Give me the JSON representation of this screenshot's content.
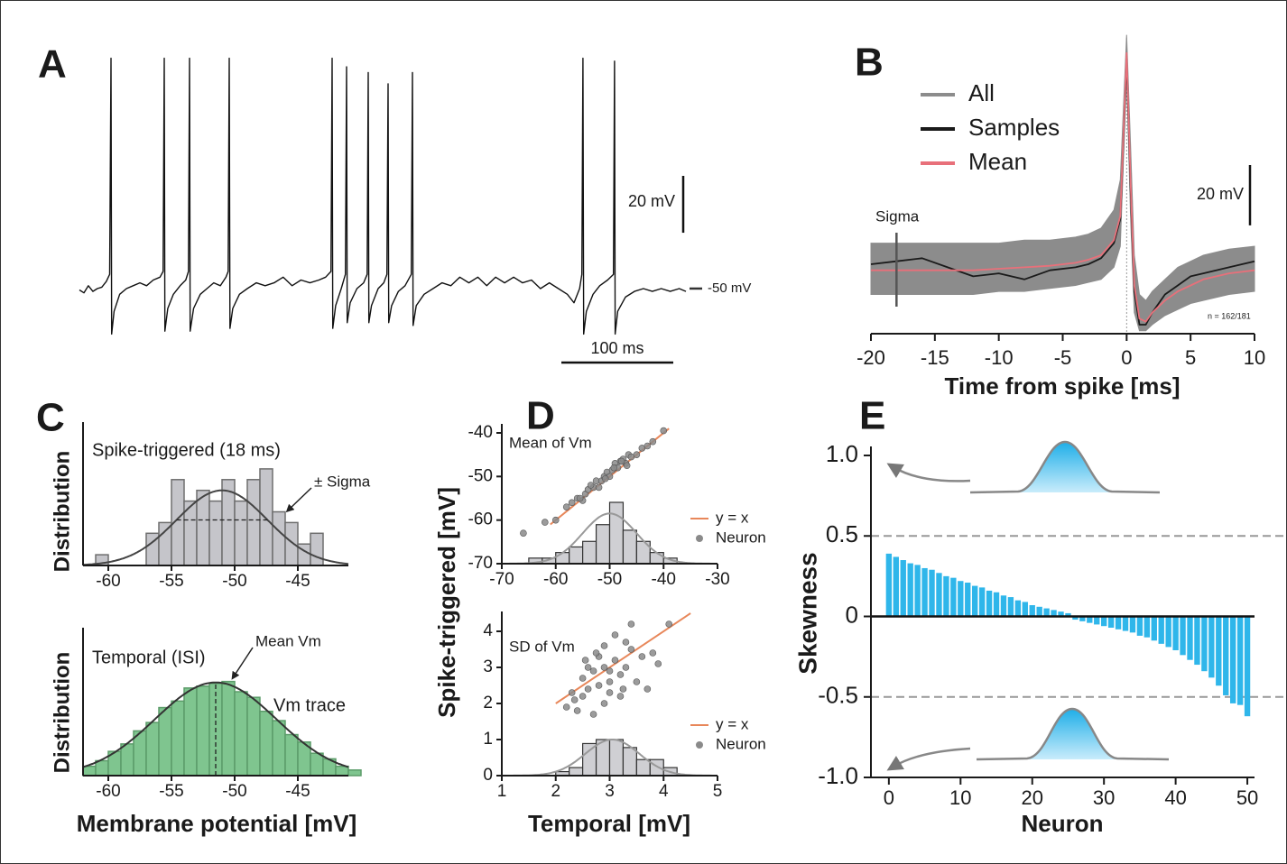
{
  "chart_data": [
    {
      "type": "line",
      "panel": "A",
      "color": "#111111",
      "x": [
        0,
        4,
        8,
        12,
        16,
        20,
        24,
        27,
        28.2,
        28.8,
        31,
        36,
        42,
        48,
        54,
        60,
        66,
        72,
        74.8,
        75.8,
        76.4,
        79,
        84,
        90,
        95,
        97.4,
        98.4,
        99,
        102,
        108,
        114,
        120,
        126,
        131,
        132.9,
        133.9,
        134.5,
        137,
        143,
        150,
        158,
        166,
        174,
        182,
        190,
        198,
        206,
        214,
        220,
        224.8,
        225.8,
        226.4,
        229,
        234,
        237.7,
        238.7,
        239.3,
        242,
        248,
        254,
        257.1,
        258.1,
        258.7,
        261,
        267,
        272,
        274.8,
        275.8,
        276.4,
        279,
        285,
        291,
        296.6,
        297.6,
        298.2,
        301,
        308,
        316,
        324,
        332,
        340,
        348,
        356,
        364,
        372,
        380,
        388,
        396,
        404,
        412,
        420,
        428,
        436,
        442,
        447,
        449,
        450,
        450.6,
        453,
        459,
        465,
        472,
        477.2,
        478.2,
        478.8,
        481,
        488,
        496,
        504,
        512,
        520,
        528,
        536,
        542
      ],
      "values": [
        -50.5,
        -51.5,
        -49,
        -51,
        -50,
        -49.5,
        -47.5,
        -45,
        31,
        -66,
        -58,
        -52,
        -50,
        -49,
        -48,
        -49,
        -47,
        -46,
        -44,
        31,
        -65,
        -57,
        -52,
        -49,
        -47,
        -44,
        31,
        -65,
        -57,
        -52,
        -50,
        -48,
        -49,
        -46,
        -44,
        31,
        -64,
        -57,
        -52,
        -50,
        -48,
        -49,
        -48,
        -46,
        -49,
        -47,
        -48,
        -47,
        -46,
        -44,
        31,
        -64,
        -56,
        -50,
        -45,
        28,
        -62,
        -55,
        -50,
        -48,
        -45,
        26,
        -62,
        -56,
        -50,
        -48,
        -45,
        22,
        -62,
        -56,
        -51,
        -49,
        -45,
        26,
        -63,
        -56,
        -52,
        -50,
        -48,
        -49,
        -46,
        -48,
        -46,
        -49,
        -46,
        -48,
        -46,
        -48,
        -47,
        -50,
        -48,
        -50,
        -52,
        -55,
        -50,
        -45,
        31,
        -66,
        -58,
        -52,
        -49,
        -47,
        -45,
        30,
        -66,
        -58,
        -53,
        -51,
        -50,
        -51,
        -50,
        -51,
        -50,
        -51
      ],
      "xlim": [
        0,
        542
      ],
      "ylim": [
        -70,
        35
      ],
      "scale_bars": [
        {
          "axis": "y",
          "value": 20,
          "label": "20 mV"
        },
        {
          "axis": "x",
          "value": 100,
          "label": "100 ms"
        }
      ],
      "ref_level": {
        "value": -50,
        "label": "-50 mV"
      }
    },
    {
      "type": "line",
      "panel": "B",
      "xlabel": "Time from spike [ms]",
      "x": [
        -20,
        -18,
        -16,
        -14,
        -12,
        -10,
        -8,
        -6,
        -4,
        -3,
        -2,
        -1,
        -0.5,
        0,
        0.3,
        0.6,
        1,
        1.5,
        2,
        3,
        4,
        5,
        6,
        8,
        10
      ],
      "series": [
        {
          "name": "All",
          "color": "#8c8c8c",
          "lower": [
            -58,
            -58,
            -58,
            -58,
            -58,
            -57,
            -57,
            -56,
            -55,
            -54,
            -53,
            -49,
            -42,
            15,
            -32,
            -64,
            -70,
            -70,
            -68,
            -65,
            -63,
            -61,
            -60,
            -58,
            -57
          ],
          "upper": [
            -41,
            -41,
            -41,
            -41,
            -41,
            -41,
            -40,
            -40,
            -39,
            -38,
            -36,
            -30,
            -20,
            28,
            -8,
            -45,
            -58,
            -60,
            -57,
            -53,
            -49,
            -47,
            -45,
            -43,
            -42
          ]
        },
        {
          "name": "Samples",
          "color": "#1a1a1a",
          "values": [
            -48,
            -47,
            -46,
            -49,
            -52,
            -51,
            -53,
            -50,
            -49,
            -48,
            -46,
            -41,
            -33,
            20,
            -22,
            -57,
            -68,
            -68,
            -64,
            -58,
            -55,
            -52,
            -51,
            -49,
            -47
          ]
        },
        {
          "name": "Mean",
          "color": "#e8707a",
          "values": [
            -50,
            -50,
            -50,
            -50,
            -50,
            -49.5,
            -49,
            -48.5,
            -47.5,
            -46.5,
            -45,
            -40,
            -32,
            22,
            -20,
            -55,
            -66,
            -67,
            -64,
            -60,
            -57,
            -55,
            -53,
            -51,
            -50
          ]
        }
      ],
      "xlim": [
        -20,
        10
      ],
      "ylim": [
        -71,
        30
      ],
      "xticks": [
        -20,
        -15,
        -10,
        -5,
        0,
        5,
        10
      ],
      "vline": 0,
      "sigma": {
        "x": -18,
        "label": "Sigma"
      },
      "note": "n = 162/181",
      "scale_bars": [
        {
          "axis": "y",
          "value": 20,
          "label": "20 mV"
        }
      ]
    },
    {
      "type": "histogram",
      "panel": "C",
      "title": "Spike-triggered (18 ms)",
      "ylabel": "Distribution",
      "annotations": [
        "± Sigma"
      ],
      "color": "#c5c5ca",
      "edge_color": "#6e6e6e",
      "fit_color": "#444444",
      "bins": [
        -61,
        -60,
        -59,
        -58,
        -57,
        -56,
        -55,
        -54,
        -53,
        -52,
        -51,
        -50,
        -49,
        -48,
        -47,
        -46,
        -45,
        -44,
        -43
      ],
      "counts": [
        1,
        0,
        0,
        0,
        3,
        4,
        8,
        6,
        7,
        6,
        8,
        6,
        8,
        9,
        5,
        4,
        2,
        3
      ],
      "fit": {
        "mean": -51,
        "sd": 3.6,
        "peak": 7
      },
      "sigma_line": true,
      "xlim": [
        -62,
        -41
      ],
      "ylim": [
        0,
        10
      ],
      "xticks": [
        -60,
        -55,
        -50,
        -45
      ]
    },
    {
      "type": "histogram",
      "title": "Temporal (ISI)",
      "ylabel": "Distribution",
      "xlabel": "Membrane potential [mV]",
      "annotations": [
        "Mean Vm",
        "Vm trace"
      ],
      "color": "#7fc58f",
      "edge_color": "#5b9b69",
      "fit_color": "#333333",
      "bins": [
        -62,
        -61,
        -60,
        -59,
        -58,
        -57,
        -56,
        -55,
        -54,
        -53,
        -52,
        -51,
        -50,
        -49,
        -48,
        -47,
        -46,
        -45,
        -44,
        -43,
        -42,
        -41,
        -40
      ],
      "counts": [
        1.0,
        1.6,
        2.6,
        3.4,
        4.8,
        5.7,
        7.3,
        8.0,
        9.4,
        9.6,
        9.9,
        10.1,
        9.0,
        8.4,
        6.9,
        5.9,
        4.4,
        3.6,
        2.4,
        1.8,
        1.0,
        0.6
      ],
      "fit": {
        "mean": -51.5,
        "sd": 4.8,
        "peak": 10
      },
      "mean_line": true,
      "xlim": [
        -62,
        -41
      ],
      "ylim": [
        0,
        12
      ],
      "xticks": [
        -60,
        -55,
        -50,
        -45
      ]
    },
    {
      "type": "scatter",
      "panel": "D",
      "ylabel": "Spike-triggered [mV]",
      "annotations": [
        "Mean of Vm"
      ],
      "series": [
        {
          "name": "y = x",
          "type": "line",
          "color": "#e8875a",
          "x": [
            -61,
            -39
          ],
          "values": [
            -61,
            -39
          ]
        },
        {
          "name": "Neuron",
          "type": "scatter",
          "color": "#8a8a8a",
          "x": [
            -66,
            -62,
            -60,
            -58,
            -57,
            -56,
            -55,
            -54.5,
            -54,
            -53,
            -52.5,
            -52,
            -51.5,
            -51,
            -50.5,
            -50,
            -49.5,
            -49,
            -48.5,
            -48,
            -47.5,
            -47,
            -46.5,
            -46,
            -45,
            -44,
            -43,
            -42,
            -40,
            -55.5,
            -53.5,
            -50.8,
            -49.2,
            -47.8,
            -46.8
          ],
          "values": [
            -63,
            -60.5,
            -60,
            -57,
            -56,
            -55,
            -55.5,
            -54,
            -53,
            -52.5,
            -51,
            -52.5,
            -51,
            -50,
            -49,
            -50,
            -48.5,
            -47,
            -48,
            -46.5,
            -46,
            -47,
            -45,
            -45.5,
            -45,
            -43.5,
            -43,
            -42,
            -39.5,
            -55,
            -52,
            -50.5,
            -48,
            -46.5,
            -47.5
          ]
        }
      ],
      "hist": {
        "bins": [
          -65,
          -62.5,
          -60,
          -57.5,
          -55,
          -52.5,
          -50,
          -47.5,
          -45,
          -42.5,
          -40,
          -37.5
        ],
        "counts": [
          1,
          1,
          2,
          3,
          4,
          7,
          11,
          6,
          4,
          2,
          1
        ],
        "color": "#cfcfd3",
        "edge_color": "#333333",
        "fit": {
          "mean": -50,
          "sd": 5,
          "peak": 9
        }
      },
      "xlim": [
        -70,
        -30
      ],
      "ylim": [
        -70,
        -40
      ],
      "xticks": [
        -70,
        -60,
        -50,
        -40,
        -30
      ],
      "yticks": [
        -70,
        -60,
        -50,
        -40
      ]
    },
    {
      "type": "scatter",
      "xlabel": "Temporal [mV]",
      "annotations": [
        "SD of Vm"
      ],
      "series": [
        {
          "name": "y = x",
          "type": "line",
          "color": "#e8875a",
          "x": [
            2,
            4.5
          ],
          "values": [
            2,
            4.5
          ]
        },
        {
          "name": "Neuron",
          "type": "scatter",
          "color": "#8a8a8a",
          "x": [
            2.2,
            2.3,
            2.4,
            2.5,
            2.5,
            2.6,
            2.6,
            2.7,
            2.7,
            2.8,
            2.8,
            2.9,
            2.9,
            3.0,
            3.0,
            3.1,
            3.1,
            3.2,
            3.2,
            3.3,
            3.4,
            3.4,
            3.5,
            3.6,
            3.7,
            3.8,
            3.9,
            4.1,
            2.35,
            2.9,
            3.3,
            2.55,
            3.25,
            3.0,
            2.75
          ],
          "values": [
            1.9,
            2.3,
            1.8,
            2.7,
            2.2,
            3.0,
            2.4,
            1.7,
            2.9,
            3.3,
            2.5,
            2.0,
            3.6,
            2.6,
            2.3,
            3.2,
            3.9,
            2.8,
            2.2,
            3.0,
            4.2,
            3.5,
            2.6,
            3.3,
            2.4,
            3.4,
            3.1,
            4.2,
            2.1,
            3.0,
            3.7,
            3.2,
            2.4,
            2.9,
            3.4
          ]
        }
      ],
      "hist": {
        "bins": [
          2,
          2.25,
          2.5,
          2.75,
          3,
          3.25,
          3.5,
          3.75,
          4,
          4.25
        ],
        "counts": [
          1,
          2,
          8,
          9,
          9,
          7,
          4,
          4,
          2
        ],
        "color": "#cfcfd3",
        "edge_color": "#333333",
        "fit": {
          "mean": 3.05,
          "sd": 0.5,
          "peak": 9
        }
      },
      "xlim": [
        1,
        5
      ],
      "ylim": [
        0,
        4.3
      ],
      "xticks": [
        1,
        2,
        3,
        4,
        5
      ],
      "yticks": [
        0,
        1,
        2,
        3,
        4
      ]
    },
    {
      "type": "bar",
      "panel": "E",
      "xlabel": "Neuron",
      "ylabel": "Skewness",
      "color": "#2fb6ea",
      "x": [
        0,
        1,
        2,
        3,
        4,
        5,
        6,
        7,
        8,
        9,
        10,
        11,
        12,
        13,
        14,
        15,
        16,
        17,
        18,
        19,
        20,
        21,
        22,
        23,
        24,
        25,
        26,
        27,
        28,
        29,
        30,
        31,
        32,
        33,
        34,
        35,
        36,
        37,
        38,
        39,
        40,
        41,
        42,
        43,
        44,
        45,
        46,
        47,
        48,
        49,
        50
      ],
      "values": [
        0.39,
        0.37,
        0.35,
        0.33,
        0.32,
        0.3,
        0.29,
        0.27,
        0.25,
        0.24,
        0.22,
        0.21,
        0.19,
        0.18,
        0.16,
        0.15,
        0.13,
        0.12,
        0.1,
        0.09,
        0.07,
        0.06,
        0.05,
        0.04,
        0.03,
        0.02,
        -0.02,
        -0.03,
        -0.04,
        -0.05,
        -0.06,
        -0.07,
        -0.08,
        -0.09,
        -0.1,
        -0.12,
        -0.13,
        -0.15,
        -0.17,
        -0.19,
        -0.21,
        -0.24,
        -0.27,
        -0.3,
        -0.34,
        -0.38,
        -0.43,
        -0.49,
        -0.54,
        -0.55,
        -0.62
      ],
      "ref_lines": [
        0.5,
        -0.5
      ],
      "xlim": [
        -2.5,
        51
      ],
      "ylim": [
        -1,
        1
      ],
      "xticks": [
        0,
        10,
        20,
        30,
        40,
        50
      ],
      "yticks": [
        {
          "value": -1,
          "label": "-1.0"
        },
        -0.5,
        0,
        0.5,
        {
          "value": 1,
          "label": "1.0"
        }
      ]
    }
  ]
}
